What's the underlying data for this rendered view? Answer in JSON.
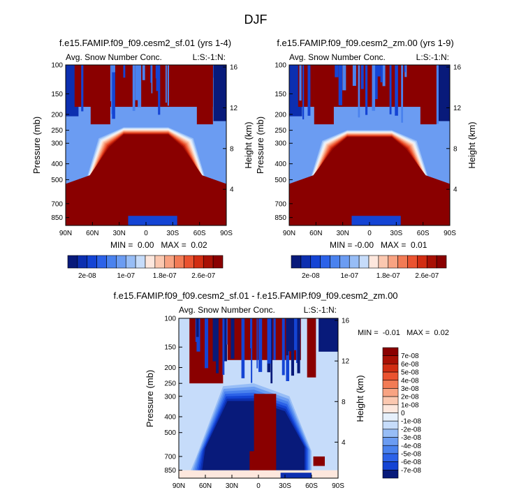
{
  "page": {
    "title": "DJF"
  },
  "colors": {
    "blue_ramp": [
      "#081a7a",
      "#0c2fb0",
      "#1444d4",
      "#2c62e8",
      "#4a82ee",
      "#6b9cf2",
      "#97bdf6",
      "#c6dcfa"
    ],
    "pale": "#e6f0fb",
    "red_ramp": [
      "#fde7dd",
      "#fbc8b0",
      "#f8a382",
      "#f27b55",
      "#ea5330",
      "#d12d12",
      "#a81004",
      "#8a0000"
    ],
    "dark_red": "#8a0000",
    "dark_blue": "#081a7a"
  },
  "chart_data": [
    {
      "type": "heatmap",
      "title": "f.e15.FAMIP.f09_f09.cesm2_sf.01 (yrs 1-4)",
      "left_label": "Avg. Snow Number Conc.",
      "right_label": "L:S:-1:N:",
      "xlabel": "",
      "ylabel": "Pressure (mb)",
      "ylabel_right": "Height (km)",
      "x_ticks": [
        "90N",
        "60N",
        "30N",
        "0",
        "30S",
        "60S",
        "90S"
      ],
      "x_tick_values": [
        90,
        60,
        30,
        0,
        -30,
        -60,
        -90
      ],
      "y_ticks": [
        "100",
        "150",
        "200",
        "250",
        "300",
        "400",
        "500",
        "700",
        "850"
      ],
      "y_tick_values": [
        100,
        150,
        200,
        250,
        300,
        400,
        500,
        700,
        850
      ],
      "y_right_ticks": [
        "16",
        "12",
        "8",
        "4"
      ],
      "y_right_values": [
        16,
        12,
        8,
        4
      ],
      "ylim": [
        100,
        950
      ],
      "stats": "MIN =  0.00   MAX =  0.02",
      "colorbar": {
        "orientation": "horizontal",
        "labels": [
          "2e-08",
          "1e-07",
          "1.8e-07",
          "2.6e-07"
        ],
        "n_colors": 16
      }
    },
    {
      "type": "heatmap",
      "title": "f.e15.FAMIP.f09_f09.cesm2_zm.00 (yrs 1-9)",
      "left_label": "Avg. Snow Number Conc.",
      "right_label": "L:S:-1:N:",
      "xlabel": "",
      "ylabel": "Pressure (mb)",
      "ylabel_right": "Height (km)",
      "x_ticks": [
        "90N",
        "60N",
        "30N",
        "0",
        "30S",
        "60S",
        "90S"
      ],
      "x_tick_values": [
        90,
        60,
        30,
        0,
        -30,
        -60,
        -90
      ],
      "y_ticks": [
        "100",
        "150",
        "200",
        "250",
        "300",
        "400",
        "500",
        "700",
        "850"
      ],
      "y_tick_values": [
        100,
        150,
        200,
        250,
        300,
        400,
        500,
        700,
        850
      ],
      "y_right_ticks": [
        "16",
        "12",
        "8",
        "4"
      ],
      "y_right_values": [
        16,
        12,
        8,
        4
      ],
      "ylim": [
        100,
        950
      ],
      "stats": "MIN = -0.00   MAX =  0.01",
      "colorbar": {
        "orientation": "horizontal",
        "labels": [
          "2e-08",
          "1e-07",
          "1.8e-07",
          "2.6e-07"
        ],
        "n_colors": 16
      }
    },
    {
      "type": "heatmap",
      "title": "f.e15.FAMIP.f09_f09.cesm2_sf.01 - f.e15.FAMIP.f09_f09.cesm2_zm.00",
      "left_label": "Avg. Snow Number Conc.",
      "right_label": "L:S:-1:N:",
      "xlabel": "",
      "ylabel": "Pressure (mb)",
      "ylabel_right": "Height (km)",
      "x_ticks": [
        "90N",
        "60N",
        "30N",
        "0",
        "30S",
        "60S",
        "90S"
      ],
      "x_tick_values": [
        90,
        60,
        30,
        0,
        -30,
        -60,
        -90
      ],
      "y_ticks": [
        "100",
        "150",
        "200",
        "250",
        "300",
        "400",
        "500",
        "700",
        "850"
      ],
      "y_tick_values": [
        100,
        150,
        200,
        250,
        300,
        400,
        500,
        700,
        850
      ],
      "y_right_ticks": [
        "16",
        "12",
        "8",
        "4"
      ],
      "y_right_values": [
        16,
        12,
        8,
        4
      ],
      "ylim": [
        100,
        950
      ],
      "stats": "MIN =  -0.01   MAX =  0.02",
      "colorbar": {
        "orientation": "vertical",
        "labels": [
          "7e-08",
          "6e-08",
          "5e-08",
          "4e-08",
          "3e-08",
          "2e-08",
          "1e-08",
          "0",
          "-1e-08",
          "-2e-08",
          "-3e-08",
          "-4e-08",
          "-5e-08",
          "-6e-08",
          "-7e-08"
        ],
        "values": [
          7e-08,
          6e-08,
          5e-08,
          4e-08,
          3e-08,
          2e-08,
          1e-08,
          0,
          -1e-08,
          -2e-08,
          -3e-08,
          -4e-08,
          -5e-08,
          -6e-08,
          -7e-08
        ]
      }
    }
  ]
}
